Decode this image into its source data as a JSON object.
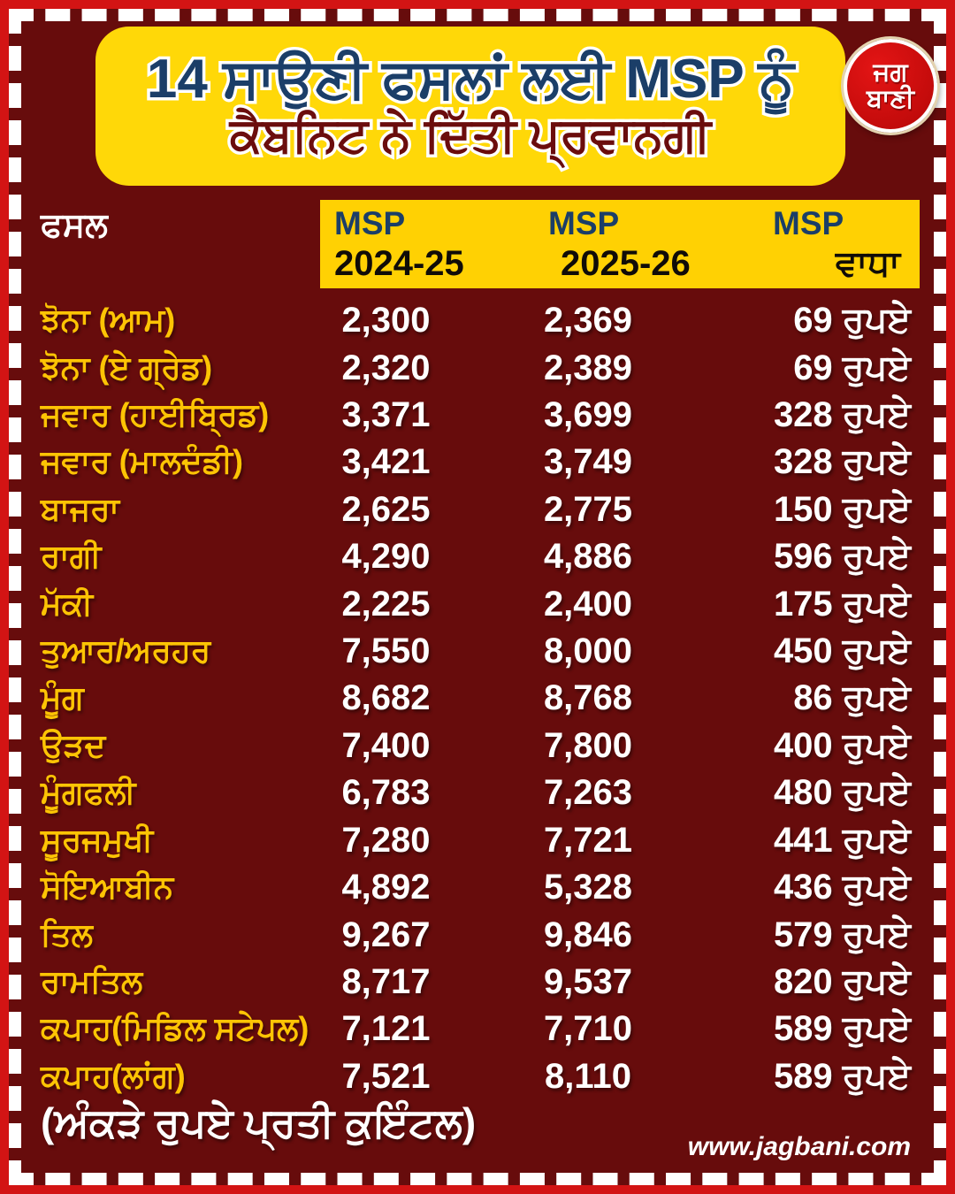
{
  "colors": {
    "frame_red": "#d31414",
    "background_maroon": "#670c0c",
    "header_yellow": "#ffd808",
    "band_yellow": "#ffd103",
    "crop_gold": "#fdc404",
    "title_navy": "#1b3e68",
    "title_maroon": "#6b0d0d",
    "value_white": "#ffffff"
  },
  "header": {
    "title_line1": "14 ਸਾਉਣੀ ਫਸਲਾਂ ਲਈ MSP ਨੂੰ",
    "title_line2": "ਕੈਬਨਿਟ ਨੇ ਦਿੱਤੀ ਪ੍ਰਵਾਨਗੀ"
  },
  "logo": {
    "line1": "ਜਗ",
    "line2": "ਬਾਣੀ"
  },
  "table": {
    "crop_header": "ਫਸਲ",
    "col_headers": [
      {
        "top": "MSP",
        "bottom": "2024-25"
      },
      {
        "top": "MSP",
        "bottom": "2025-26"
      },
      {
        "top": "MSP",
        "bottom": "ਵਾਧਾ"
      }
    ],
    "rows": [
      {
        "crop": "ਝੋਨਾ (ਆਮ)",
        "msp_2024_25": "2,300",
        "msp_2025_26": "2,369",
        "increase": "69 ਰੁਪਏ"
      },
      {
        "crop": "ਝੋਨਾ (ਏ ਗ੍ਰੇਡ)",
        "msp_2024_25": "2,320",
        "msp_2025_26": "2,389",
        "increase": "69 ਰੁਪਏ"
      },
      {
        "crop": "ਜਵਾਰ (ਹਾਈਬ੍ਰਿਡ)",
        "msp_2024_25": "3,371",
        "msp_2025_26": "3,699",
        "increase": "328 ਰੁਪਏ"
      },
      {
        "crop": "ਜਵਾਰ (ਮਾਲਦੰਡੀ)",
        "msp_2024_25": "3,421",
        "msp_2025_26": "3,749",
        "increase": "328 ਰੁਪਏ"
      },
      {
        "crop": "ਬਾਜਰਾ",
        "msp_2024_25": "2,625",
        "msp_2025_26": "2,775",
        "increase": "150 ਰੁਪਏ"
      },
      {
        "crop": "ਰਾਗੀ",
        "msp_2024_25": "4,290",
        "msp_2025_26": "4,886",
        "increase": "596 ਰੁਪਏ"
      },
      {
        "crop": "ਮੱਕੀ",
        "msp_2024_25": "2,225",
        "msp_2025_26": "2,400",
        "increase": "175 ਰੁਪਏ"
      },
      {
        "crop": "ਤੁਆਰ/ਅਰਹਰ",
        "msp_2024_25": "7,550",
        "msp_2025_26": "8,000",
        "increase": "450 ਰੁਪਏ"
      },
      {
        "crop": "ਮੂੰਗ",
        "msp_2024_25": "8,682",
        "msp_2025_26": "8,768",
        "increase": "86 ਰੁਪਏ"
      },
      {
        "crop": "ਉੜਦ",
        "msp_2024_25": "7,400",
        "msp_2025_26": "7,800",
        "increase": "400 ਰੁਪਏ"
      },
      {
        "crop": "ਮੂੰਗਫਲੀ",
        "msp_2024_25": "6,783",
        "msp_2025_26": "7,263",
        "increase": "480 ਰੁਪਏ"
      },
      {
        "crop": "ਸੂਰਜਮੁਖੀ",
        "msp_2024_25": "7,280",
        "msp_2025_26": "7,721",
        "increase": "441 ਰੁਪਏ"
      },
      {
        "crop": "ਸੋਇਆਬੀਨ",
        "msp_2024_25": "4,892",
        "msp_2025_26": "5,328",
        "increase": "436 ਰੁਪਏ"
      },
      {
        "crop": "ਤਿਲ",
        "msp_2024_25": "9,267",
        "msp_2025_26": "9,846",
        "increase": "579 ਰੁਪਏ"
      },
      {
        "crop": "ਰਾਮਤਿਲ",
        "msp_2024_25": "8,717",
        "msp_2025_26": "9,537",
        "increase": "820 ਰੁਪਏ"
      },
      {
        "crop": "ਕਪਾਹ(ਮਿਡਿਲ ਸਟੇਪਲ)",
        "msp_2024_25": "7,121",
        "msp_2025_26": "7,710",
        "increase": "589 ਰੁਪਏ"
      },
      {
        "crop": "ਕਪਾਹ(ਲਾਂਗ)",
        "msp_2024_25": "7,521",
        "msp_2025_26": "8,110",
        "increase": "589 ਰੁਪਏ"
      }
    ]
  },
  "footer": {
    "note": "(ਅੰਕੜੇ ਰੁਪਏ ਪ੍ਰਤੀ ਕੁਇੰਟਲ)",
    "website": "www.jagbani.com"
  },
  "chart_data": {
    "type": "table",
    "title": "14 ਸਾਉਣੀ ਫਸਲਾਂ ਲਈ MSP ਨੂੰ ਕੈਬਨਿਟ ਨੇ ਦਿੱਤੀ ਪ੍ਰਵਾਨਗੀ",
    "unit_note": "ਅੰਕੜੇ ਰੁਪਏ ਪ੍ਰਤੀ ਕੁਇੰਟਲ",
    "categories": [
      "ਝੋਨਾ (ਆਮ)",
      "ਝੋਨਾ (ਏ ਗ੍ਰੇਡ)",
      "ਜਵਾਰ (ਹਾਈਬ੍ਰਿਡ)",
      "ਜਵਾਰ (ਮਾਲਦੰਡੀ)",
      "ਬਾਜਰਾ",
      "ਰਾਗੀ",
      "ਮੱਕੀ",
      "ਤੁਆਰ/ਅਰਹਰ",
      "ਮੂੰਗ",
      "ਉੜਦ",
      "ਮੂੰਗਫਲੀ",
      "ਸੂਰਜਮੁਖੀ",
      "ਸੋਇਆਬੀਨ",
      "ਤਿਲ",
      "ਰਾਮਤਿਲ",
      "ਕਪਾਹ(ਮਿਡਿਲ ਸਟੇਪਲ)",
      "ਕਪਾਹ(ਲਾਂਗ)"
    ],
    "series": [
      {
        "name": "MSP 2024-25",
        "values": [
          2300,
          2320,
          3371,
          3421,
          2625,
          4290,
          2225,
          7550,
          8682,
          7400,
          6783,
          7280,
          4892,
          9267,
          8717,
          7121,
          7521
        ]
      },
      {
        "name": "MSP 2025-26",
        "values": [
          2369,
          2389,
          3699,
          3749,
          2775,
          4886,
          2400,
          8000,
          8768,
          7800,
          7263,
          7721,
          5328,
          9846,
          9537,
          7710,
          8110
        ]
      },
      {
        "name": "MSP ਵਾਧਾ (ਰੁਪਏ)",
        "values": [
          69,
          69,
          328,
          328,
          150,
          596,
          175,
          450,
          86,
          400,
          480,
          441,
          436,
          579,
          820,
          589,
          589
        ]
      }
    ]
  }
}
